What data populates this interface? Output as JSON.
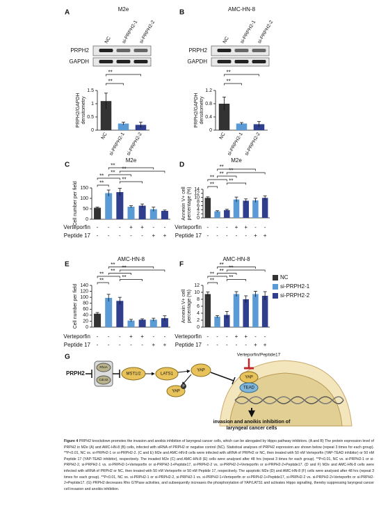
{
  "chart_data": [
    {
      "type": "bar",
      "panel": "A",
      "title": "M2e",
      "blot": {
        "lanes": [
          "NC",
          "si-PRPH2-1",
          "si-PRPH2-2"
        ],
        "rows": [
          "PRPH2",
          "GAPDH"
        ]
      },
      "categories": [
        "NC",
        "si-PRPH2-1",
        "si-PRPH2-2"
      ],
      "ylabel": [
        "PRPH2/GAPDH",
        "densitometry"
      ],
      "values": [
        1.1,
        0.25,
        0.2
      ],
      "errors": [
        0.3,
        0.05,
        0.1
      ],
      "colors": [
        "#333333",
        "#5b9bd5",
        "#2f3f8e"
      ],
      "ylim": [
        0,
        1.5
      ],
      "yticks": [
        0,
        0.5,
        1,
        1.5
      ],
      "comparisons": [
        {
          "label": "**",
          "bars": [
            0,
            1
          ]
        },
        {
          "label": "**",
          "bars": [
            0,
            2
          ]
        }
      ]
    },
    {
      "type": "bar",
      "panel": "B",
      "title": "AMC-HN-8",
      "blot": {
        "lanes": [
          "NC",
          "si-PRPH2-1",
          "si-PRPH2-2"
        ],
        "rows": [
          "PRPH2",
          "GAPDH"
        ]
      },
      "categories": [
        "NC",
        "si-PRPH2-1",
        "si-PRPH2-2"
      ],
      "ylabel": [
        "PRPH2/GAPDH",
        "densitometry"
      ],
      "values": [
        0.8,
        0.2,
        0.18
      ],
      "errors": [
        0.2,
        0.03,
        0.08
      ],
      "colors": [
        "#333333",
        "#5b9bd5",
        "#2f3f8e"
      ],
      "ylim": [
        0,
        1.2
      ],
      "yticks": [
        0,
        0.4,
        0.8,
        1.2
      ],
      "comparisons": [
        {
          "label": "**",
          "bars": [
            0,
            1
          ]
        },
        {
          "label": "**",
          "bars": [
            0,
            2
          ]
        }
      ]
    },
    {
      "type": "bar",
      "panel": "C",
      "title": "M2e",
      "ylabel": [
        "Cell number per field"
      ],
      "values": [
        55,
        125,
        130,
        60,
        65,
        48,
        40
      ],
      "errors": [
        3,
        15,
        18,
        5,
        8,
        10,
        4
      ],
      "colors": [
        "#333333",
        "#5b9bd5",
        "#2f3f8e",
        "#5b9bd5",
        "#2f3f8e",
        "#5b9bd5",
        "#2f3f8e"
      ],
      "ylim": [
        0,
        150
      ],
      "yticks": [
        0,
        50,
        100,
        150
      ],
      "treatments": [
        {
          "name": "Verteporfin",
          "signs": [
            "-",
            "-",
            "-",
            "+",
            "+",
            "-",
            "-"
          ]
        },
        {
          "name": "Peptide 17",
          "signs": [
            "-",
            "-",
            "-",
            "-",
            "-",
            "+",
            "+"
          ]
        }
      ],
      "comparisons": [
        {
          "label": "**",
          "bars": [
            0,
            1
          ]
        },
        {
          "label": "**",
          "bars": [
            2,
            4
          ]
        },
        {
          "label": "**",
          "bars": [
            0,
            2
          ]
        },
        {
          "label": "**",
          "bars": [
            1,
            3
          ]
        },
        {
          "label": "**",
          "bars": [
            2,
            6
          ]
        },
        {
          "label": "**",
          "bars": [
            1,
            5
          ]
        }
      ]
    },
    {
      "type": "bar",
      "panel": "D",
      "title": "M2e",
      "ylabel": [
        "Annexin V+ cell",
        "percentage (%)"
      ],
      "values": [
        9.8,
        3.2,
        3.8,
        9,
        8.4,
        8.6,
        9.8
      ],
      "errors": [
        0.5,
        0.3,
        0.4,
        1.2,
        0.9,
        1,
        1
      ],
      "colors": [
        "#333333",
        "#5b9bd5",
        "#2f3f8e",
        "#5b9bd5",
        "#2f3f8e",
        "#5b9bd5",
        "#2f3f8e"
      ],
      "ylim": [
        0,
        14
      ],
      "yticks": [
        0,
        2,
        4,
        6,
        8,
        10,
        12,
        14
      ],
      "treatments": [
        {
          "name": "Verteporfin",
          "signs": [
            "-",
            "-",
            "-",
            "+",
            "+",
            "-",
            "-"
          ]
        },
        {
          "name": "Peptide 17",
          "signs": [
            "-",
            "-",
            "-",
            "-",
            "-",
            "+",
            "+"
          ]
        }
      ],
      "comparisons": [
        {
          "label": "**",
          "bars": [
            0,
            1
          ]
        },
        {
          "label": "**",
          "bars": [
            2,
            4
          ]
        },
        {
          "label": "**",
          "bars": [
            0,
            2
          ]
        },
        {
          "label": "**",
          "bars": [
            1,
            3
          ]
        },
        {
          "label": "**",
          "bars": [
            2,
            6
          ]
        },
        {
          "label": "**",
          "bars": [
            1,
            5
          ]
        }
      ]
    },
    {
      "type": "bar",
      "panel": "E",
      "title": "AMC-HN-8",
      "ylabel": [
        "Cell number per field"
      ],
      "values": [
        45,
        98,
        88,
        22,
        25,
        25,
        30
      ],
      "errors": [
        4,
        12,
        12,
        4,
        3,
        5,
        8
      ],
      "colors": [
        "#333333",
        "#5b9bd5",
        "#2f3f8e",
        "#5b9bd5",
        "#2f3f8e",
        "#5b9bd5",
        "#2f3f8e"
      ],
      "ylim": [
        0,
        140
      ],
      "yticks": [
        0,
        20,
        40,
        60,
        80,
        100,
        120,
        140
      ],
      "treatments": [
        {
          "name": "Verteporfin",
          "signs": [
            "-",
            "-",
            "-",
            "+",
            "+",
            "-",
            "-"
          ]
        },
        {
          "name": "Peptide 17",
          "signs": [
            "-",
            "-",
            "-",
            "-",
            "-",
            "+",
            "+"
          ]
        }
      ],
      "comparisons": [
        {
          "label": "**",
          "bars": [
            0,
            1
          ]
        },
        {
          "label": "**",
          "bars": [
            2,
            4
          ]
        },
        {
          "label": "**",
          "bars": [
            0,
            2
          ]
        },
        {
          "label": "**",
          "bars": [
            1,
            3
          ]
        },
        {
          "label": "**",
          "bars": [
            2,
            6
          ]
        },
        {
          "label": "**",
          "bars": [
            1,
            5
          ]
        }
      ]
    },
    {
      "type": "bar",
      "panel": "F",
      "title": "AMC-HN-8",
      "ylabel": [
        "Annexin V+ cell",
        "percentage (%)"
      ],
      "values": [
        9.5,
        3,
        3.5,
        9.5,
        8,
        9.5,
        9
      ],
      "errors": [
        0.6,
        0.3,
        1,
        0.7,
        1,
        0.8,
        1.2
      ],
      "colors": [
        "#333333",
        "#5b9bd5",
        "#2f3f8e",
        "#5b9bd5",
        "#2f3f8e",
        "#5b9bd5",
        "#2f3f8e"
      ],
      "ylim": [
        0,
        12
      ],
      "yticks": [
        0,
        2,
        4,
        6,
        8,
        10,
        12
      ],
      "treatments": [
        {
          "name": "Verteporfin",
          "signs": [
            "-",
            "-",
            "-",
            "+",
            "+",
            "-",
            "-"
          ]
        },
        {
          "name": "Peptide 17",
          "signs": [
            "-",
            "-",
            "-",
            "-",
            "-",
            "+",
            "+"
          ]
        }
      ],
      "legend": [
        {
          "name": "NC",
          "color": "#333333"
        },
        {
          "name": "si-PRPH2-1",
          "color": "#5b9bd5"
        },
        {
          "name": "si-PRPH2-2",
          "color": "#2f3f8e"
        }
      ],
      "comparisons": [
        {
          "label": "**",
          "bars": [
            0,
            1
          ]
        },
        {
          "label": "**",
          "bars": [
            2,
            4
          ]
        },
        {
          "label": "**",
          "bars": [
            0,
            2
          ]
        },
        {
          "label": "**",
          "bars": [
            1,
            3
          ]
        },
        {
          "label": "**",
          "bars": [
            2,
            6
          ]
        },
        {
          "label": "**",
          "bars": [
            1,
            5
          ]
        }
      ]
    }
  ],
  "diagram": {
    "panel": "G",
    "nodes": [
      "PRPH2",
      "RhoA",
      "Cdc42",
      "MST1/2",
      "LATS1",
      "YAP",
      "YAP",
      "YAP",
      "TEAD",
      "Verteporfin/Peptide17"
    ],
    "phospho": "P",
    "outcome": [
      "invasion and anoikis inhibition of",
      "laryngeal cancer cells"
    ]
  },
  "caption": {
    "label": "Figure 4",
    "text": "PRPH2 knockdown promotes the invasion and anoikis inhibition of laryngeal cancer cells, which can be abrogated by Hippo pathway inhibitors. (A and B) The protein expression level of PRPH2 in M2e (A) and AMC-HN-8 (B) cells, infected with siRNA of PRPH2 or negative control (NC). Statistical analyses of PRPH2 expression are shown below (repeat 3 times for each group). **P<0.01, NC vs. si-PRPH2-1 or si-PRPH2-2. (C and E) M2e and AMC-HN-8 cells were infected with siRNA of PRPH2 or NC, then treated with 50 nM Verteporfin (YAP-TEAD inhibitor) or 50 nM Peptide 17 (YAP-TEAD inhibitor), respectively. The invaded M2e (C) and AMC-HN-8 (E) cells were analysed after 48 hrs (repeat 3 times for each group). **P<0.01, NC vs. si-PRPH2-1 or si-PRPH2-2, si-PRPH2-1 vs. si-PRPH2-1+Verteporfin or si-PRPH2-1+Peptide17, si-PRPH2-2 vs. si-PRPH2-2+Verteporfin or si-PRPH2-2+Peptide17. (D and F) M2e and AMC-HN-8 cells were infected with siRNA of PRPH2 or NC, then treated with 50 nM Verteporfin or 50 nM Peptide 17, respectively. The apoptotic M2e (D) and AMC-HN-8 (F) cells were analysed after 48 hrs (repeat 3 times for each group). **P<0.01, NC vs. si-PRPH2-1 or si-PRPH2-2, si-PRPH2-1 vs. si-PRPH2-1+Verteporfin or si-PRPH2-1+Peptide17, si-PRPH2-2 vs. si-PRPH2-2+Verteporfin or si-PRPH2-2+Peptide17. (G) PRPH2 decreases Rho GTPase activities, and subsequently increases the phosphorylation of YAP/LATS1 and activates Hippo signalling, thereby suppressing laryngeal cancer cell invasion and anoikis inhibition."
  }
}
